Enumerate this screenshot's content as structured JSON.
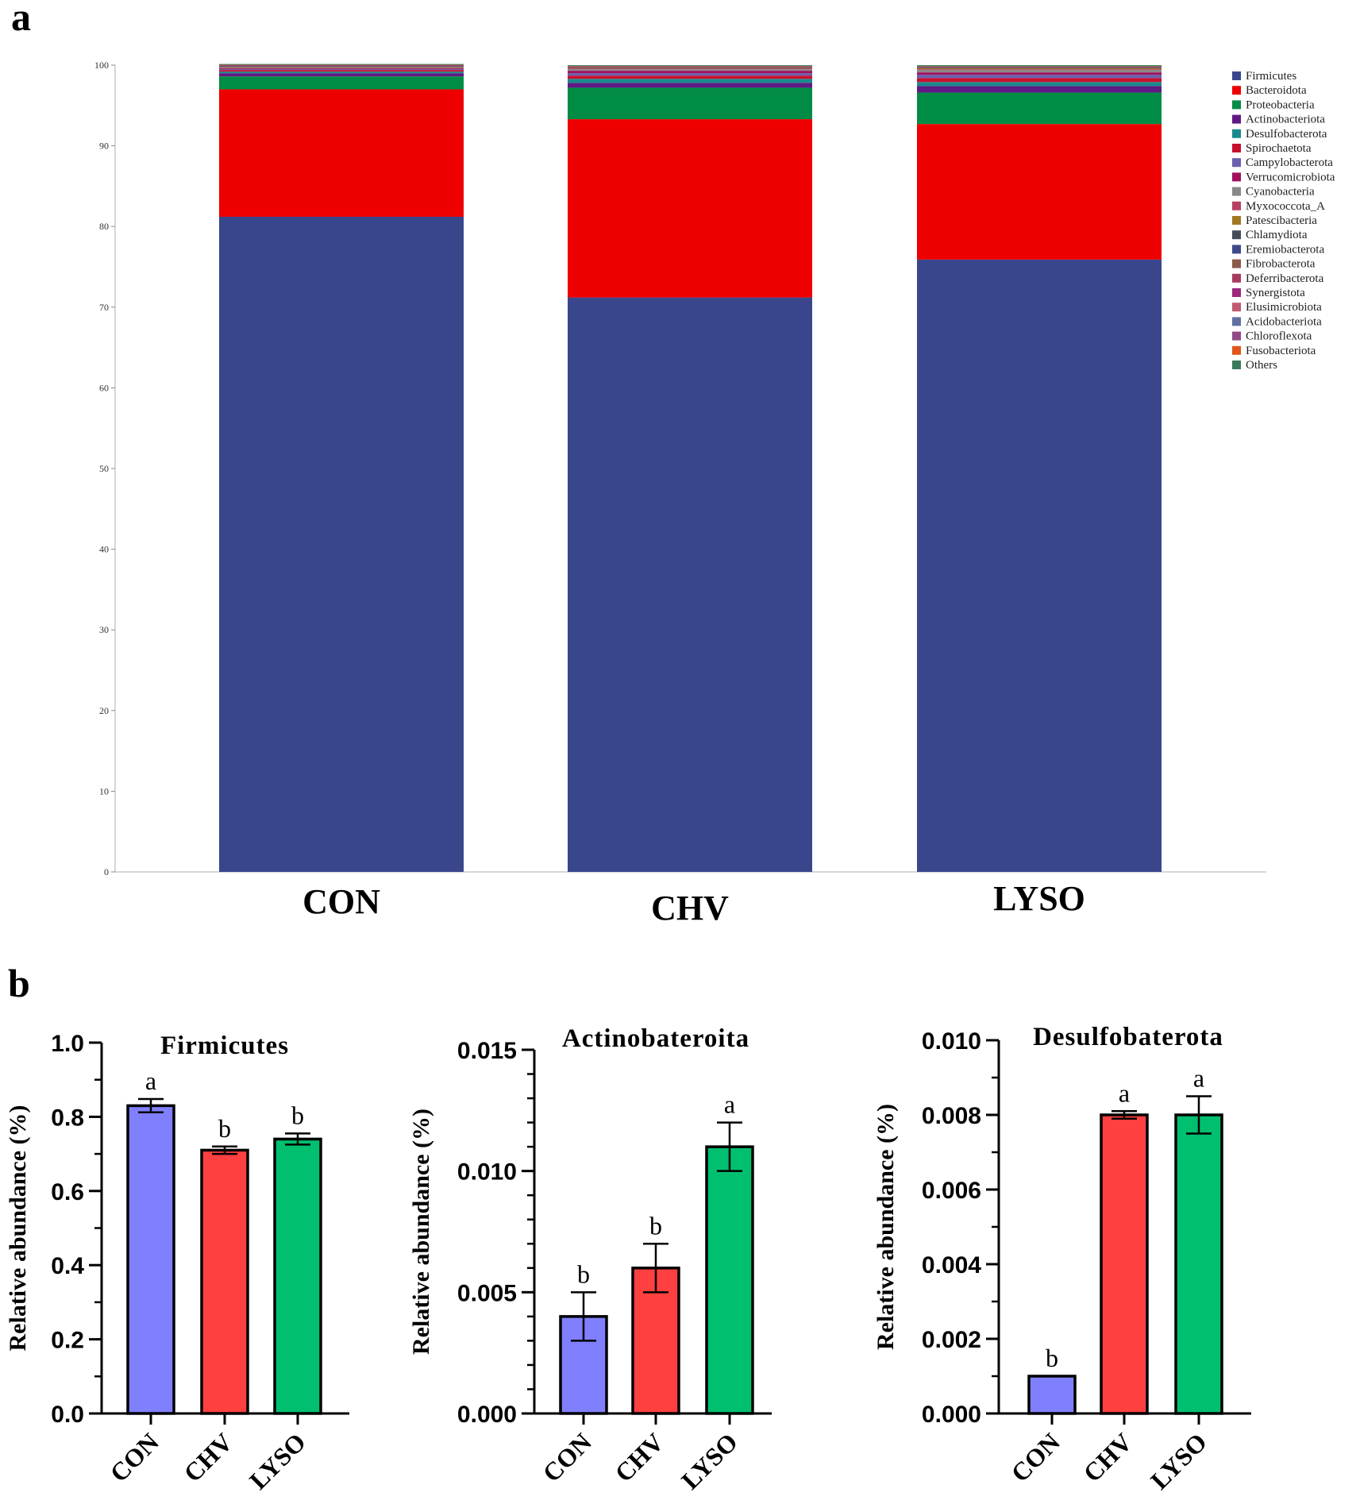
{
  "panel_a": {
    "label": "a",
    "legend_title": "",
    "chart_data": {
      "type": "stacked-bar",
      "title": "",
      "xlabel": "",
      "ylabel": "",
      "ylim": [
        0,
        100
      ],
      "yticks": [
        0,
        10,
        20,
        30,
        40,
        50,
        60,
        70,
        80,
        90,
        100
      ],
      "categories": [
        "CON",
        "CHV",
        "LYSO"
      ],
      "series": [
        {
          "name": "Firmicutes",
          "color": "#3a468c",
          "values": [
            81.2,
            71.2,
            75.9
          ]
        },
        {
          "name": "Bacteroidota",
          "color": "#ee0000",
          "values": [
            15.8,
            22.1,
            16.8
          ]
        },
        {
          "name": "Proteobacteria",
          "color": "#008c45",
          "values": [
            1.6,
            3.9,
            3.9
          ]
        },
        {
          "name": "Actinobacteriota",
          "color": "#5e1a84",
          "values": [
            0.4,
            0.6,
            0.8
          ]
        },
        {
          "name": "Desulfobacterota",
          "color": "#1a8a8c",
          "values": [
            0.2,
            0.5,
            0.5
          ]
        },
        {
          "name": "Spirochaetota",
          "color": "#c8102e",
          "values": [
            0.2,
            0.4,
            0.5
          ]
        },
        {
          "name": "Campylobacterota",
          "color": "#6a5fb0",
          "values": [
            0.1,
            0.3,
            0.4
          ]
        },
        {
          "name": "Verrucomicrobiota",
          "color": "#a0105e",
          "values": [
            0.1,
            0.3,
            0.3
          ]
        },
        {
          "name": "Cyanobacteria",
          "color": "#888888",
          "values": [
            0.1,
            0.2,
            0.3
          ]
        },
        {
          "name": "Myxococcota_A",
          "color": "#b84060",
          "values": [
            0.05,
            0.1,
            0.1
          ]
        },
        {
          "name": "Patescibacteria",
          "color": "#a07820",
          "values": [
            0.05,
            0.05,
            0.1
          ]
        },
        {
          "name": "Chlamydiota",
          "color": "#444c5c",
          "values": [
            0.05,
            0.05,
            0.05
          ]
        },
        {
          "name": "Eremiobacterota",
          "color": "#3c4a8a",
          "values": [
            0.03,
            0.03,
            0.03
          ]
        },
        {
          "name": "Fibrobacterota",
          "color": "#8c5a4a",
          "values": [
            0.03,
            0.03,
            0.03
          ]
        },
        {
          "name": "Deferribacterota",
          "color": "#a83a60",
          "values": [
            0.03,
            0.03,
            0.03
          ]
        },
        {
          "name": "Synergistota",
          "color": "#9c2a7c",
          "values": [
            0.02,
            0.02,
            0.02
          ]
        },
        {
          "name": "Elusimicrobiota",
          "color": "#c05a70",
          "values": [
            0.02,
            0.02,
            0.02
          ]
        },
        {
          "name": "Acidobacteriota",
          "color": "#6070a0",
          "values": [
            0.02,
            0.02,
            0.02
          ]
        },
        {
          "name": "Chloroflexota",
          "color": "#904a8a",
          "values": [
            0.02,
            0.02,
            0.02
          ]
        },
        {
          "name": "Fusobacteriota",
          "color": "#e0561a",
          "values": [
            0.02,
            0.02,
            0.02
          ]
        },
        {
          "name": "Others",
          "color": "#3a7a5a",
          "values": [
            0.1,
            0.1,
            0.1
          ]
        }
      ]
    }
  },
  "panel_b": {
    "label": "b",
    "chart_data": [
      {
        "type": "bar",
        "title": "Firmicutes",
        "ylabel": "Relative abundance (%)",
        "ylim": [
          0,
          1.0
        ],
        "yticks": [
          "0.0",
          "0.2",
          "0.4",
          "0.6",
          "0.8",
          "1.0"
        ],
        "ytick_values": [
          0,
          0.2,
          0.4,
          0.6,
          0.8,
          1.0
        ],
        "minor_step": 0.1,
        "categories": [
          "CON",
          "CHV",
          "LYSO"
        ],
        "colors": [
          "#8080ff",
          "#ff4040",
          "#00c070"
        ],
        "values": [
          0.83,
          0.71,
          0.74
        ],
        "errors": [
          0.018,
          0.01,
          0.015
        ],
        "letters": [
          "a",
          "b",
          "b"
        ]
      },
      {
        "type": "bar",
        "title": "Actinobateroita",
        "ylabel": "Relative abundance (%)",
        "ylim": [
          0,
          0.015
        ],
        "yticks": [
          "0.000",
          "0.005",
          "0.010",
          "0.015"
        ],
        "ytick_values": [
          0,
          0.005,
          0.01,
          0.015
        ],
        "minor_step": 0.001,
        "categories": [
          "CON",
          "CHV",
          "LYSO"
        ],
        "colors": [
          "#8080ff",
          "#ff4040",
          "#00c070"
        ],
        "values": [
          0.004,
          0.006,
          0.011
        ],
        "errors": [
          0.001,
          0.001,
          0.001
        ],
        "letters": [
          "b",
          "b",
          "a"
        ]
      },
      {
        "type": "bar",
        "title": "Desulfobaterota",
        "ylabel": "Relative abundance (%)",
        "ylim": [
          0,
          0.01
        ],
        "yticks": [
          "0.000",
          "0.002",
          "0.004",
          "0.006",
          "0.008",
          "0.010"
        ],
        "ytick_values": [
          0,
          0.002,
          0.004,
          0.006,
          0.008,
          0.01
        ],
        "minor_step": 0.001,
        "categories": [
          "CON",
          "CHV",
          "LYSO"
        ],
        "colors": [
          "#8080ff",
          "#ff4040",
          "#00c070"
        ],
        "values": [
          0.001,
          0.008,
          0.008
        ],
        "errors": [
          0.0,
          0.0001,
          0.0005
        ],
        "letters": [
          "b",
          "a",
          "a"
        ]
      }
    ]
  }
}
